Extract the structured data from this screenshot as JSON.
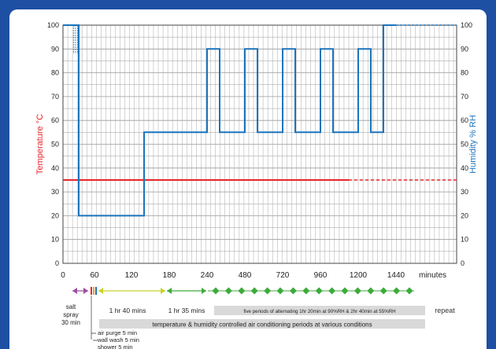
{
  "chart_data": {
    "type": "line",
    "ylabel_left": "Temperature °C",
    "ylabel_right": "Humidity % RH",
    "x_unit": "minutes",
    "ylim": [
      0,
      100
    ],
    "y_ticks": [
      0,
      10,
      20,
      30,
      40,
      50,
      60,
      70,
      80,
      90,
      100
    ],
    "x_ticks": [
      "0",
      "60",
      "120",
      "180",
      "240",
      "480",
      "720",
      "960",
      "1200",
      "1440"
    ],
    "series": [
      {
        "quantity": "temperature",
        "unit": "°C",
        "color": "#e8252a",
        "points": [
          [
            0,
            35
          ],
          [
            1440,
            35
          ]
        ],
        "dashed_after": 1140
      },
      {
        "quantity": "humidity",
        "unit": "%RH",
        "color": "#1a74bd",
        "points": [
          [
            0,
            100
          ],
          [
            30,
            100
          ],
          [
            30,
            20
          ],
          [
            140,
            20
          ],
          [
            140,
            55
          ],
          [
            240,
            55
          ],
          [
            240,
            90
          ],
          [
            320,
            90
          ],
          [
            320,
            55
          ],
          [
            480,
            55
          ],
          [
            480,
            90
          ],
          [
            560,
            90
          ],
          [
            560,
            55
          ],
          [
            720,
            55
          ],
          [
            720,
            90
          ],
          [
            800,
            90
          ],
          [
            800,
            55
          ],
          [
            960,
            55
          ],
          [
            960,
            90
          ],
          [
            1040,
            90
          ],
          [
            1040,
            55
          ],
          [
            1200,
            55
          ],
          [
            1200,
            90
          ],
          [
            1280,
            90
          ],
          [
            1280,
            55
          ],
          [
            1360,
            55
          ],
          [
            1360,
            100
          ],
          [
            1440,
            100
          ]
        ]
      }
    ],
    "phases": [
      {
        "label": "1 hr 40 mins",
        "color": "#c8d42a"
      },
      {
        "label": "1 hr 35 mins",
        "color": "#3cab3a"
      },
      {
        "label": "five periods of alternating 1hr 20min at 90%RH & 2hr 40min at 55%RH",
        "color": "#3cab3a"
      },
      {
        "label": "repeat",
        "color": "#333333"
      }
    ],
    "annotations": {
      "salt_spray": [
        "salt",
        "spray",
        "30 min"
      ],
      "conditioning": "temperature & humidity controlled air conditioning periods at various conditions",
      "sub_steps": [
        "air purge 5 min",
        "wall wash 5 min",
        "shower 5 min"
      ]
    }
  }
}
